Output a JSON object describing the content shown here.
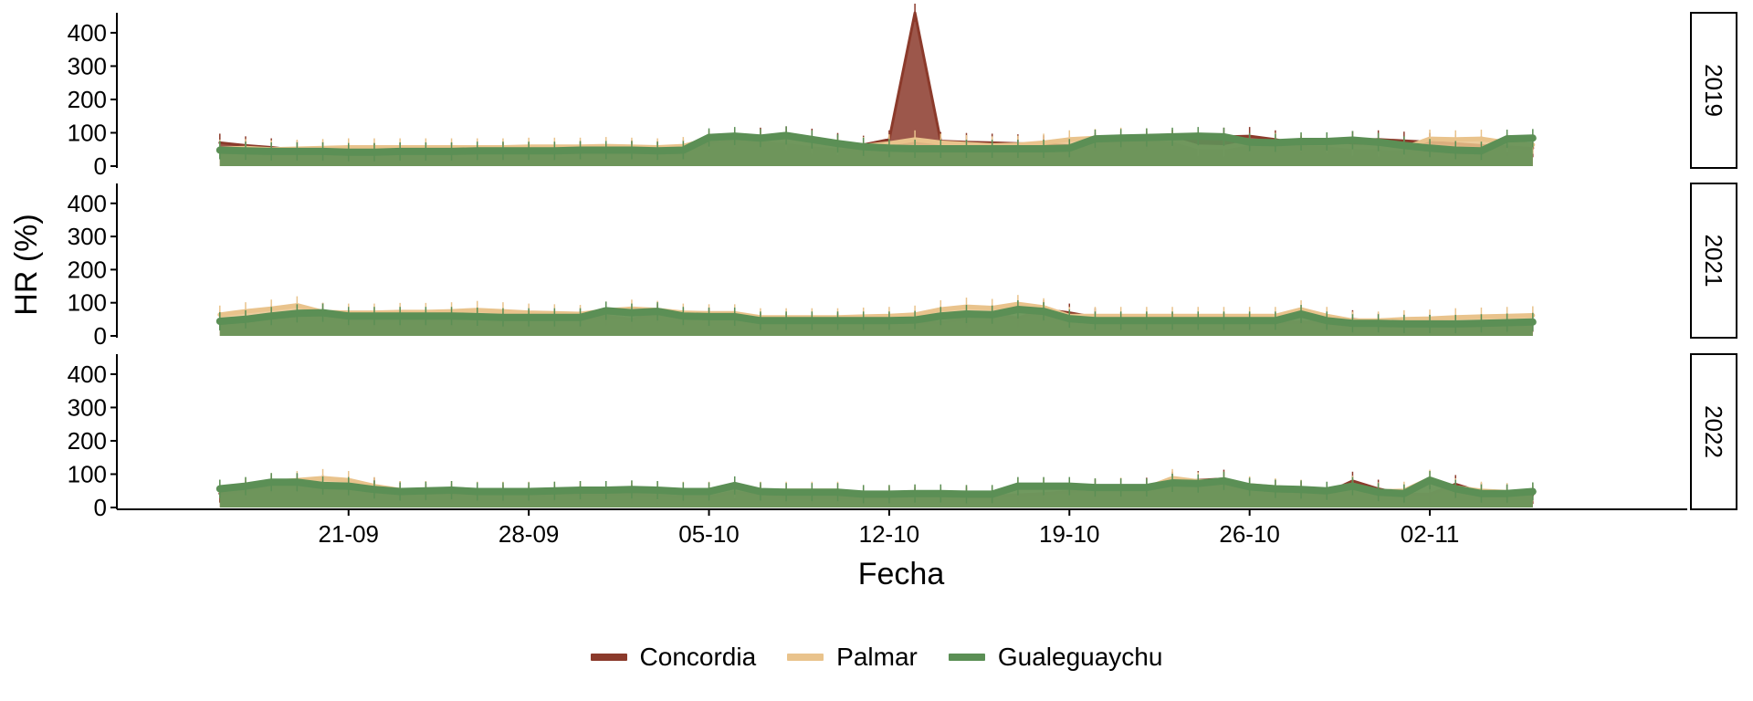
{
  "chart_data": {
    "type": "line",
    "ylabel": "HR (%)",
    "xlabel": "Fecha",
    "x_tick_labels": [
      "21-09",
      "28-09",
      "05-10",
      "12-10",
      "19-10",
      "26-10",
      "02-11"
    ],
    "x_tick_dates": [
      "09-21",
      "09-28",
      "10-05",
      "10-12",
      "10-19",
      "10-26",
      "11-02"
    ],
    "x_dates": [
      "09-16",
      "09-17",
      "09-18",
      "09-19",
      "09-20",
      "09-21",
      "09-22",
      "09-23",
      "09-24",
      "09-25",
      "09-26",
      "09-27",
      "09-28",
      "09-29",
      "09-30",
      "10-01",
      "10-02",
      "10-03",
      "10-04",
      "10-05",
      "10-06",
      "10-07",
      "10-08",
      "10-09",
      "10-10",
      "10-11",
      "10-12",
      "10-13",
      "10-14",
      "10-15",
      "10-16",
      "10-17",
      "10-18",
      "10-19",
      "10-20",
      "10-21",
      "10-22",
      "10-23",
      "10-24",
      "10-25",
      "10-26",
      "10-27",
      "10-28",
      "10-29",
      "10-30",
      "10-31",
      "11-01",
      "11-02",
      "11-03",
      "11-04",
      "11-05",
      "11-06"
    ],
    "ylim": [
      0,
      460
    ],
    "y_ticks": [
      0,
      100,
      200,
      300,
      400
    ],
    "legend_position": "bottom",
    "grid": false,
    "colors": {
      "Concordia": "#8b3a2b",
      "Palmar": "#e9c38c",
      "Gualeguaychu": "#5b8f55"
    },
    "panels": [
      {
        "label": "2019",
        "series": [
          {
            "name": "Concordia",
            "values": [
              70,
              62,
              56,
              48,
              45,
              40,
              40,
              42,
              42,
              42,
              43,
              43,
              44,
              44,
              46,
              47,
              50,
              48,
              52,
              70,
              80,
              88,
              92,
              85,
              72,
              64,
              80,
              460,
              75,
              72,
              70,
              68,
              65,
              62,
              72,
              76,
              76,
              82,
              86,
              88,
              90,
              80,
              64,
              70,
              78,
              80,
              76,
              72,
              68,
              62,
              58,
              54
            ]
          },
          {
            "name": "Palmar",
            "values": [
              52,
              54,
              50,
              52,
              54,
              56,
              56,
              56,
              56,
              56,
              56,
              56,
              58,
              58,
              58,
              60,
              58,
              56,
              60,
              80,
              86,
              82,
              76,
              66,
              60,
              60,
              68,
              80,
              70,
              66,
              62,
              64,
              70,
              80,
              84,
              88,
              86,
              80,
              58,
              56,
              70,
              72,
              70,
              66,
              58,
              56,
              54,
              82,
              80,
              82,
              70,
              64
            ]
          },
          {
            "name": "Gualeguaychu",
            "values": [
              48,
              46,
              44,
              44,
              44,
              42,
              42,
              44,
              44,
              44,
              46,
              46,
              46,
              46,
              48,
              48,
              48,
              46,
              48,
              86,
              90,
              84,
              92,
              80,
              68,
              58,
              54,
              52,
              52,
              52,
              52,
              52,
              52,
              54,
              82,
              84,
              86,
              88,
              90,
              88,
              72,
              70,
              74,
              74,
              78,
              72,
              62,
              54,
              48,
              46,
              82,
              84
            ]
          }
        ]
      },
      {
        "label": "2021",
        "series": [
          {
            "name": "Concordia",
            "values": [
              48,
              52,
              64,
              70,
              72,
              50,
              48,
              48,
              48,
              50,
              54,
              52,
              50,
              48,
              48,
              60,
              50,
              68,
              56,
              56,
              56,
              40,
              40,
              40,
              40,
              40,
              40,
              40,
              42,
              52,
              66,
              54,
              80,
              70,
              56,
              44,
              42,
              42,
              42,
              42,
              42,
              42,
              42,
              42,
              50,
              42,
              38,
              36,
              34,
              34,
              36,
              40
            ]
          },
          {
            "name": "Palmar",
            "values": [
              64,
              74,
              82,
              92,
              72,
              70,
              70,
              72,
              72,
              74,
              78,
              74,
              70,
              68,
              66,
              76,
              82,
              78,
              70,
              68,
              68,
              56,
              56,
              56,
              56,
              58,
              60,
              64,
              80,
              88,
              84,
              96,
              86,
              60,
              60,
              60,
              60,
              60,
              60,
              60,
              60,
              60,
              80,
              60,
              46,
              46,
              50,
              52,
              56,
              58,
              60,
              62
            ]
          },
          {
            "name": "Gualeguaychu",
            "values": [
              44,
              50,
              60,
              68,
              70,
              60,
              60,
              60,
              60,
              60,
              58,
              56,
              56,
              56,
              56,
              76,
              70,
              74,
              60,
              58,
              58,
              46,
              46,
              46,
              46,
              46,
              46,
              48,
              60,
              66,
              64,
              80,
              74,
              52,
              46,
              46,
              46,
              46,
              46,
              46,
              46,
              46,
              66,
              46,
              38,
              38,
              36,
              36,
              36,
              38,
              40,
              42
            ]
          }
        ]
      },
      {
        "label": "2022",
        "series": [
          {
            "name": "Concordia",
            "values": [
              42,
              50,
              72,
              74,
              70,
              62,
              62,
              52,
              44,
              42,
              42,
              40,
              38,
              40,
              40,
              40,
              40,
              36,
              32,
              32,
              48,
              42,
              30,
              30,
              30,
              32,
              34,
              34,
              34,
              34,
              34,
              38,
              42,
              48,
              56,
              60,
              62,
              80,
              82,
              86,
              60,
              56,
              50,
              44,
              80,
              56,
              40,
              40,
              70,
              46,
              40,
              38
            ]
          },
          {
            "name": "Palmar",
            "values": [
              56,
              62,
              76,
              82,
              88,
              82,
              64,
              52,
              52,
              52,
              50,
              50,
              50,
              50,
              52,
              52,
              52,
              50,
              50,
              50,
              56,
              50,
              50,
              50,
              50,
              40,
              40,
              40,
              40,
              40,
              40,
              62,
              62,
              62,
              60,
              62,
              58,
              88,
              78,
              80,
              66,
              60,
              56,
              48,
              68,
              48,
              50,
              86,
              60,
              50,
              46,
              46
            ]
          },
          {
            "name": "Gualeguaychu",
            "values": [
              56,
              64,
              76,
              76,
              66,
              64,
              54,
              48,
              50,
              52,
              48,
              48,
              48,
              50,
              52,
              52,
              54,
              52,
              48,
              48,
              66,
              48,
              46,
              46,
              46,
              40,
              40,
              42,
              42,
              40,
              40,
              64,
              64,
              64,
              60,
              60,
              60,
              74,
              72,
              80,
              62,
              56,
              54,
              50,
              64,
              46,
              42,
              82,
              56,
              42,
              42,
              48
            ]
          }
        ]
      }
    ]
  }
}
